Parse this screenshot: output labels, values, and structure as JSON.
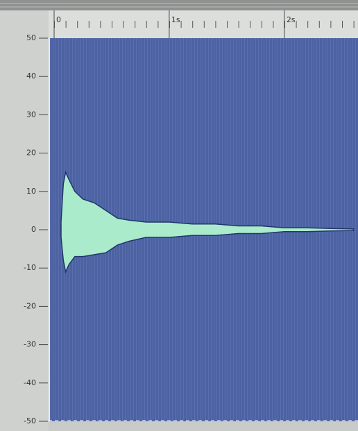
{
  "chart_data": {
    "type": "area",
    "x": [
      0.06,
      0.08,
      0.1,
      0.13,
      0.18,
      0.25,
      0.35,
      0.45,
      0.55,
      0.65,
      0.8,
      1.0,
      1.2,
      1.4,
      1.6,
      1.8,
      2.0,
      2.2,
      2.4,
      2.6
    ],
    "series": [
      {
        "color": "#a9ebcb",
        "values": [
          2,
          12,
          15,
          13,
          10,
          8,
          7,
          5,
          3,
          2.5,
          2,
          2,
          1.5,
          1.5,
          1,
          1,
          0.5,
          0.5,
          0.3,
          0.2
        ]
      },
      {
        "color": "#a9ebcb",
        "values": [
          -2,
          -8,
          -11,
          -9,
          -7,
          -7,
          -6.5,
          -6,
          -4,
          -3,
          -2,
          -2,
          -1.5,
          -1.5,
          -1,
          -1,
          -0.5,
          -0.5,
          -0.3,
          -0.2
        ]
      }
    ],
    "xlim": [
      0,
      2.64
    ],
    "xticks": [
      0,
      {
        "value": 1,
        "label": "1s"
      },
      {
        "value": 2,
        "label": "2s"
      }
    ],
    "ylim": [
      -50,
      50
    ],
    "yticks": [
      50,
      40,
      30,
      20,
      10,
      0,
      -10,
      -20,
      -30,
      -40,
      -50
    ]
  }
}
